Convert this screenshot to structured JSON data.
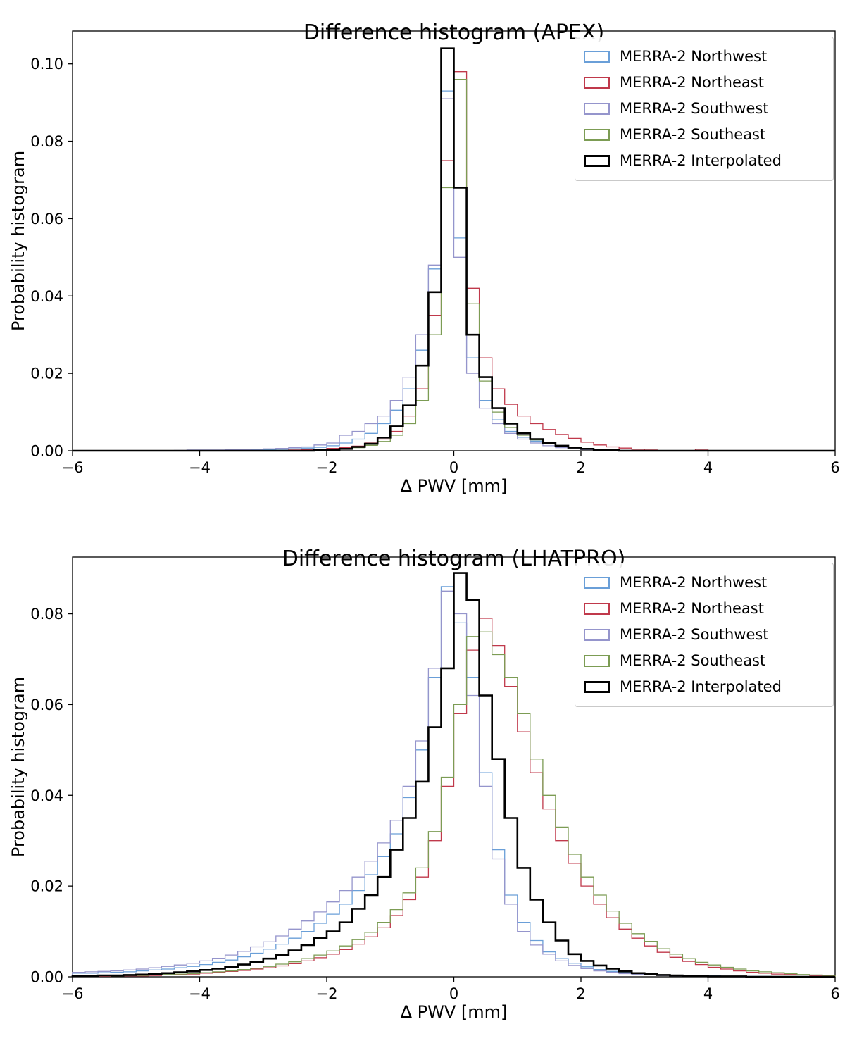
{
  "chart_data": [
    {
      "type": "histogram-step",
      "title": "Difference histogram (APEX)",
      "xlabel": "Δ PWV [mm]",
      "ylabel": "Probability histogram",
      "xlim": [
        -6,
        6
      ],
      "ylim": [
        0,
        0.1085
      ],
      "xticks": [
        -6,
        -4,
        -2,
        0,
        2,
        4,
        6
      ],
      "yticks": [
        0,
        0.02,
        0.04,
        0.06,
        0.08,
        0.1
      ],
      "legend_position": "upper right",
      "grid": false,
      "bin_start": -6,
      "bin_width": 0.2,
      "series": [
        {
          "name": "MERRA-2 Northwest",
          "color": "#6a9fd8",
          "linewidth": 1.3,
          "values": [
            0,
            0,
            0,
            0,
            0,
            0,
            0,
            0,
            0,
            0,
            0.0001,
            0.0001,
            0.0002,
            0.0002,
            0.0003,
            0.0003,
            0.0004,
            0.0005,
            0.0007,
            0.0009,
            0.0013,
            0.002,
            0.003,
            0.0045,
            0.007,
            0.0105,
            0.016,
            0.026,
            0.047,
            0.093,
            0.055,
            0.024,
            0.013,
            0.008,
            0.005,
            0.0035,
            0.0025,
            0.0018,
            0.0012,
            0.0008,
            0.0005,
            0.0003,
            0.0002,
            0.0001,
            0,
            0,
            0,
            0,
            0,
            0,
            0,
            0,
            0,
            0,
            0,
            0,
            0,
            0,
            0,
            0
          ]
        },
        {
          "name": "MERRA-2 Northeast",
          "color": "#c0394b",
          "linewidth": 1.3,
          "values": [
            0,
            0,
            0,
            0,
            0,
            0,
            0,
            0,
            0,
            0,
            0,
            0,
            0,
            0,
            0,
            0,
            0,
            0.0002,
            0.0003,
            0.0004,
            0.0006,
            0.0008,
            0.0012,
            0.002,
            0.003,
            0.005,
            0.009,
            0.016,
            0.035,
            0.075,
            0.098,
            0.042,
            0.024,
            0.016,
            0.012,
            0.009,
            0.007,
            0.0055,
            0.0042,
            0.0032,
            0.0022,
            0.0015,
            0.001,
            0.0007,
            0.0004,
            0.0002,
            0,
            0,
            0,
            0.0004,
            0,
            0,
            0,
            0,
            0,
            0,
            0,
            0,
            0,
            0
          ]
        },
        {
          "name": "MERRA-2 Southwest",
          "color": "#9595cc",
          "linewidth": 1.3,
          "values": [
            0,
            0,
            0,
            0,
            0,
            0,
            0,
            0,
            0.0001,
            0.0002,
            0.0002,
            0.0002,
            0.0003,
            0.0003,
            0.0004,
            0.0005,
            0.0006,
            0.0008,
            0.001,
            0.0015,
            0.002,
            0.004,
            0.005,
            0.007,
            0.009,
            0.013,
            0.019,
            0.03,
            0.048,
            0.091,
            0.05,
            0.02,
            0.011,
            0.007,
            0.0045,
            0.003,
            0.002,
            0.0013,
            0.0008,
            0.0005,
            0.0003,
            0.0002,
            0,
            0,
            0,
            0,
            0,
            0,
            0,
            0,
            0,
            0,
            0,
            0,
            0,
            0,
            0,
            0,
            0,
            0
          ]
        },
        {
          "name": "MERRA-2 Southeast",
          "color": "#7c9c54",
          "linewidth": 1.3,
          "values": [
            0,
            0,
            0,
            0,
            0,
            0,
            0,
            0,
            0,
            0,
            0,
            0,
            0,
            0,
            0,
            0,
            0,
            0,
            0,
            0.0002,
            0.0003,
            0.0005,
            0.0008,
            0.0014,
            0.0024,
            0.004,
            0.007,
            0.013,
            0.03,
            0.068,
            0.096,
            0.038,
            0.018,
            0.01,
            0.006,
            0.004,
            0.0028,
            0.002,
            0.0013,
            0.0008,
            0.0005,
            0.0003,
            0.0002,
            0,
            0,
            0,
            0,
            0,
            0,
            0,
            0,
            0,
            0,
            0,
            0,
            0,
            0,
            0,
            0,
            0
          ]
        },
        {
          "name": "MERRA-2 Interpolated",
          "color": "#000000",
          "linewidth": 2.6,
          "values": [
            0,
            0,
            0,
            0,
            0,
            0,
            0,
            0,
            0,
            0,
            0,
            0,
            0,
            0,
            0,
            0,
            0,
            0,
            0,
            0.0002,
            0.0003,
            0.0005,
            0.001,
            0.0018,
            0.0034,
            0.0063,
            0.0117,
            0.022,
            0.041,
            0.104,
            0.068,
            0.03,
            0.019,
            0.011,
            0.007,
            0.0045,
            0.003,
            0.002,
            0.0013,
            0.0008,
            0.0005,
            0.0003,
            0.0002,
            0,
            0,
            0,
            0,
            0,
            0,
            0,
            0,
            0,
            0,
            0,
            0,
            0,
            0,
            0,
            0,
            0
          ]
        }
      ]
    },
    {
      "type": "histogram-step",
      "title": "Difference histogram (LHATPRO)",
      "xlabel": "Δ PWV [mm]",
      "ylabel": "Probability histogram",
      "xlim": [
        -6,
        6
      ],
      "ylim": [
        0,
        0.0925
      ],
      "xticks": [
        -6,
        -4,
        -2,
        0,
        2,
        4,
        6
      ],
      "yticks": [
        0,
        0.02,
        0.04,
        0.06,
        0.08
      ],
      "legend_position": "upper right",
      "grid": false,
      "bin_start": -6,
      "bin_width": 0.2,
      "series": [
        {
          "name": "MERRA-2 Northwest",
          "color": "#6a9fd8",
          "linewidth": 1.3,
          "values": [
            0.0008,
            0.0008,
            0.0009,
            0.001,
            0.0011,
            0.0013,
            0.0015,
            0.0017,
            0.002,
            0.0023,
            0.0027,
            0.0032,
            0.0037,
            0.0044,
            0.0052,
            0.0061,
            0.0072,
            0.0085,
            0.01,
            0.0118,
            0.0138,
            0.016,
            0.019,
            0.0225,
            0.0265,
            0.0315,
            0.0395,
            0.05,
            0.066,
            0.086,
            0.078,
            0.066,
            0.045,
            0.028,
            0.018,
            0.012,
            0.008,
            0.0055,
            0.004,
            0.003,
            0.0022,
            0.0016,
            0.0012,
            0.0009,
            0.0007,
            0.0005,
            0.0004,
            0.0003,
            0.0003,
            0.0002,
            0.0002,
            0.0001,
            0.0001,
            0.0001,
            0.0001,
            0,
            0,
            0,
            0,
            0
          ]
        },
        {
          "name": "MERRA-2 Northeast",
          "color": "#c0394b",
          "linewidth": 1.3,
          "values": [
            0.0001,
            0.0001,
            0.0001,
            0.0002,
            0.0002,
            0.0002,
            0.0003,
            0.0004,
            0.0005,
            0.0006,
            0.0008,
            0.001,
            0.0012,
            0.0014,
            0.0017,
            0.002,
            0.0024,
            0.0029,
            0.0035,
            0.0042,
            0.005,
            0.006,
            0.0072,
            0.0088,
            0.0108,
            0.0135,
            0.017,
            0.022,
            0.03,
            0.042,
            0.058,
            0.072,
            0.079,
            0.073,
            0.064,
            0.054,
            0.045,
            0.037,
            0.03,
            0.025,
            0.02,
            0.016,
            0.013,
            0.0105,
            0.0085,
            0.0068,
            0.0054,
            0.0043,
            0.0034,
            0.0027,
            0.0021,
            0.0017,
            0.0013,
            0.001,
            0.0008,
            0.0006,
            0.0005,
            0.0004,
            0.0003,
            0.0002
          ]
        },
        {
          "name": "MERRA-2 Southwest",
          "color": "#9595cc",
          "linewidth": 1.3,
          "values": [
            0.001,
            0.0011,
            0.0012,
            0.0013,
            0.0015,
            0.0017,
            0.002,
            0.0023,
            0.0026,
            0.003,
            0.0035,
            0.0041,
            0.0048,
            0.0056,
            0.0066,
            0.0077,
            0.009,
            0.0105,
            0.0123,
            0.0143,
            0.0165,
            0.019,
            0.022,
            0.0255,
            0.0295,
            0.0345,
            0.042,
            0.052,
            0.068,
            0.085,
            0.08,
            0.062,
            0.042,
            0.026,
            0.016,
            0.01,
            0.007,
            0.005,
            0.0035,
            0.0025,
            0.0018,
            0.0013,
            0.001,
            0.0007,
            0.0005,
            0.0004,
            0.0003,
            0.0002,
            0.0002,
            0.0001,
            0.0001,
            0.0001,
            0,
            0,
            0,
            0,
            0,
            0,
            0,
            0
          ]
        },
        {
          "name": "MERRA-2 Southeast",
          "color": "#7c9c54",
          "linewidth": 1.3,
          "values": [
            0.0001,
            0.0002,
            0.0002,
            0.0002,
            0.0003,
            0.0003,
            0.0004,
            0.0005,
            0.0006,
            0.0007,
            0.0009,
            0.0011,
            0.0013,
            0.0016,
            0.0019,
            0.0023,
            0.0028,
            0.0033,
            0.004,
            0.0048,
            0.0057,
            0.0068,
            0.0082,
            0.0098,
            0.012,
            0.0148,
            0.0185,
            0.024,
            0.032,
            0.044,
            0.06,
            0.075,
            0.076,
            0.071,
            0.066,
            0.058,
            0.048,
            0.04,
            0.033,
            0.027,
            0.022,
            0.018,
            0.0145,
            0.0118,
            0.0095,
            0.0078,
            0.0062,
            0.005,
            0.004,
            0.0032,
            0.0026,
            0.0021,
            0.0017,
            0.0013,
            0.0011,
            0.0009,
            0.0007,
            0.0005,
            0.0004,
            0.0003
          ]
        },
        {
          "name": "MERRA-2 Interpolated",
          "color": "#000000",
          "linewidth": 2.6,
          "values": [
            0.0002,
            0.0002,
            0.0003,
            0.0003,
            0.0004,
            0.0005,
            0.0006,
            0.0008,
            0.001,
            0.0012,
            0.0015,
            0.0018,
            0.0022,
            0.0027,
            0.0033,
            0.004,
            0.0048,
            0.0058,
            0.007,
            0.0085,
            0.01,
            0.012,
            0.015,
            0.018,
            0.022,
            0.028,
            0.035,
            0.043,
            0.055,
            0.068,
            0.089,
            0.083,
            0.062,
            0.048,
            0.035,
            0.024,
            0.017,
            0.012,
            0.008,
            0.005,
            0.0035,
            0.0025,
            0.0018,
            0.0012,
            0.0008,
            0.0006,
            0.0004,
            0.0003,
            0.0002,
            0.0002,
            0.0001,
            0.0001,
            0.0001,
            0,
            0,
            0,
            0,
            0,
            0,
            0
          ]
        }
      ]
    }
  ]
}
